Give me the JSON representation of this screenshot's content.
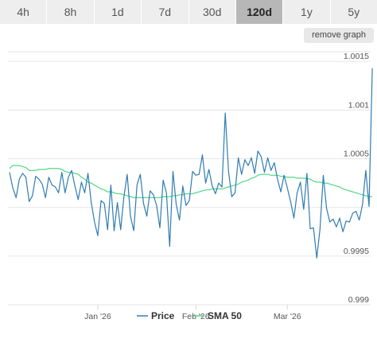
{
  "range_tabs": [
    {
      "label": "4h",
      "active": false
    },
    {
      "label": "8h",
      "active": false
    },
    {
      "label": "1d",
      "active": false
    },
    {
      "label": "7d",
      "active": false
    },
    {
      "label": "30d",
      "active": false
    },
    {
      "label": "120d",
      "active": true
    },
    {
      "label": "1y",
      "active": false
    },
    {
      "label": "5y",
      "active": false
    }
  ],
  "remove_graph_label": "remove graph",
  "colors": {
    "price": "#2f7cb2",
    "sma": "#50d884",
    "grid": "#e6e6e6",
    "tab_bg": "#eeeeee",
    "tab_active_bg": "#b7b7b7"
  },
  "chart_data": {
    "type": "line",
    "title": "",
    "xlabel": "",
    "ylabel": "",
    "x_ticks": [
      "Jan '26",
      "Feb '26",
      "Mar '26"
    ],
    "y_ticks": [
      "0.999",
      "0.9995",
      "1.0005",
      "1.001",
      "1.0015"
    ],
    "ylim": [
      0.999,
      1.0016
    ],
    "xlim": [
      0,
      110
    ],
    "x_tick_positions": [
      27,
      57,
      85
    ],
    "legend_position": "bottom-center",
    "grid": true,
    "series": [
      {
        "name": "Price",
        "values": [
          1.00036,
          1.0002,
          1.0001,
          1.00029,
          1.00035,
          1.00031,
          1.00006,
          1.00012,
          1.00032,
          1.00029,
          1.00024,
          1.0001,
          1.00031,
          1.00023,
          1.00021,
          1.00015,
          1.00036,
          1.00015,
          1.00031,
          1.00038,
          1.00022,
          1.00008,
          1.00026,
          1.00015,
          1.00035,
          1.00005,
          0.99985,
          0.99971,
          1.00007,
          1.00004,
          0.99977,
          1.00023,
          0.99976,
          1.00005,
          0.99977,
          1.00011,
          1.00034,
          0.99991,
          0.99976,
          1.00023,
          1.00034,
          1.00004,
          0.99991,
          1.00017,
          1.00013,
          1.00002,
          0.99979,
          1.00028,
          1.00015,
          0.9996,
          1.00037,
          1.00003,
          0.99987,
          1.00022,
          1.00002,
          1.00007,
          1.00037,
          1.00033,
          1.00034,
          1.00054,
          1.00025,
          1.00039,
          1.00022,
          1.00014,
          1.00025,
          1.00021,
          1.00097,
          1.00037,
          1.00011,
          1.00015,
          1.00051,
          1.00034,
          1.00049,
          1.00043,
          1.00051,
          1.00035,
          1.00058,
          1.00052,
          1.00036,
          1.00051,
          1.00038,
          1.00046,
          1.00029,
          1.00016,
          1.00033,
          1.0002,
          1.00006,
          0.99989,
          1.00015,
          1.00026,
          0.99998,
          1.00035,
          0.99978,
          0.99979,
          0.99948,
          0.99978,
          1.00033,
          0.99999,
          0.99985,
          0.99988,
          0.9998,
          0.99989,
          0.99975,
          0.99986,
          0.99985,
          0.99994,
          0.99996,
          0.99987,
          1.00003,
          1.00038,
          1.00001,
          1.00143
        ],
        "color_key": "price"
      },
      {
        "name": "SMA 50",
        "values": [
          1.0004,
          1.00043,
          1.00043,
          1.00043,
          1.00042,
          1.00041,
          1.00038,
          1.00038,
          1.00038,
          1.00039,
          1.00039,
          1.00039,
          1.0004,
          1.0004,
          1.0004,
          1.0004,
          1.00039,
          1.00037,
          1.00036,
          1.00036,
          1.00035,
          1.00034,
          1.00031,
          1.00029,
          1.00026,
          1.00025,
          1.00023,
          1.00021,
          1.00019,
          1.00018,
          1.00016,
          1.00016,
          1.00015,
          1.00014,
          1.00014,
          1.00013,
          1.00012,
          1.00011,
          1.0001,
          1.0001,
          1.0001,
          1.0001,
          1.0001,
          1.0001,
          1.0001,
          1.0001,
          1.0001,
          1.00011,
          1.00011,
          1.00011,
          1.00012,
          1.00012,
          1.00013,
          1.00013,
          1.00014,
          1.00014,
          1.00014,
          1.00015,
          1.00016,
          1.00017,
          1.00018,
          1.00018,
          1.00019,
          1.00019,
          1.00019,
          1.00019,
          1.0002,
          1.00021,
          1.00022,
          1.00023,
          1.00024,
          1.00026,
          1.00027,
          1.00028,
          1.0003,
          1.00031,
          1.00033,
          1.00034,
          1.00034,
          1.00034,
          1.00033,
          1.00033,
          1.00033,
          1.00032,
          1.00032,
          1.00031,
          1.00031,
          1.00031,
          1.0003,
          1.0003,
          1.0003,
          1.0003,
          1.00029,
          1.00027,
          1.00026,
          1.00026,
          1.00025,
          1.00025,
          1.00024,
          1.00023,
          1.00022,
          1.00021,
          1.00019,
          1.00018,
          1.00017,
          1.00016,
          1.00015,
          1.00014,
          1.00013,
          1.00012,
          1.00011,
          1.00011
        ],
        "color_key": "sma"
      }
    ]
  }
}
